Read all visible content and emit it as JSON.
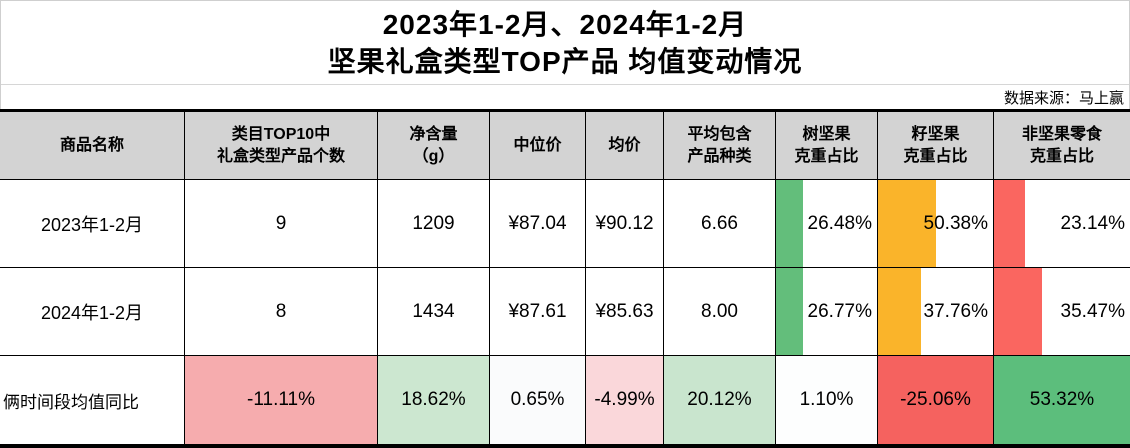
{
  "title": {
    "line1": "2023年1-2月、2024年1-2月",
    "line2": "坚果礼盒类型TOP产品 均值变动情况"
  },
  "source": "数据来源：马上赢",
  "header_lines": [
    [
      "商品名称"
    ],
    [
      "类目TOP10中",
      "礼盒类型产品个数"
    ],
    [
      "净含量",
      "（g）"
    ],
    [
      "中位价"
    ],
    [
      "均价"
    ],
    [
      "平均包含",
      "产品种类"
    ],
    [
      "树坚果",
      "克重占比"
    ],
    [
      "籽坚果",
      "克重占比"
    ],
    [
      "非坚果零食",
      "克重占比"
    ]
  ],
  "colors": {
    "header_bg": "#d3d3d3",
    "table_border": "#000000",
    "grid_line_light": "#cfcfcf"
  },
  "bar_colors": {
    "green": "#63be7b",
    "orange": "#fab42a",
    "red": "#fa6660"
  },
  "rows_meta": [
    {
      "cells": [
        null,
        null,
        null,
        null,
        null,
        null,
        {
          "bar": "green",
          "pct": 26.48
        },
        {
          "bar": "orange",
          "pct": 50.38
        },
        {
          "bar": "red",
          "pct": 23.14
        }
      ]
    },
    {
      "cells": [
        null,
        null,
        null,
        null,
        null,
        null,
        {
          "bar": "green",
          "pct": 26.77
        },
        {
          "bar": "orange",
          "pct": 37.76
        },
        {
          "bar": "red",
          "pct": 35.47
        }
      ]
    },
    {
      "cells": [
        {
          "align": "left"
        },
        {
          "bg": "#f6acae"
        },
        {
          "bg": "#cce7d0"
        },
        {
          "bg": "#fafbfc"
        },
        {
          "bg": "#fad7da"
        },
        {
          "bg": "#c9e5ce"
        },
        {
          "bg": "#fdfefe"
        },
        {
          "bg": "#f5625f"
        },
        {
          "bg": "#5cbe7c"
        }
      ]
    }
  ],
  "chart_data": {
    "type": "table",
    "title": "2023年1-2月、2024年1-2月 坚果礼盒类型TOP产品 均值变动情况",
    "source": "数据来源：马上赢",
    "columns": [
      "商品名称",
      "类目TOP10中礼盒类型产品个数",
      "净含量（g）",
      "中位价",
      "均价",
      "平均包含产品种类",
      "树坚果克重占比",
      "籽坚果克重占比",
      "非坚果零食克重占比"
    ],
    "rows": [
      [
        "2023年1-2月",
        "9",
        "1209",
        "¥87.04",
        "¥90.12",
        "6.66",
        "26.48%",
        "50.38%",
        "23.14%"
      ],
      [
        "2024年1-2月",
        "8",
        "1434",
        "¥87.61",
        "¥85.63",
        "8.00",
        "26.77%",
        "37.76%",
        "35.47%"
      ],
      [
        "俩时间段均值同比",
        "-11.11%",
        "18.62%",
        "0.65%",
        "-4.99%",
        "20.12%",
        "1.10%",
        "-25.06%",
        "53.32%"
      ]
    ],
    "notes": {
      "data_bars": "columns 树坚果/籽坚果/非坚果零食 in the two year rows show left-anchored data bars sized to the percentage value (green/orange/red)",
      "color_scale": "bottom row uses red-white-green color scale from -25.06% (red) to 53.32% (green)"
    }
  }
}
